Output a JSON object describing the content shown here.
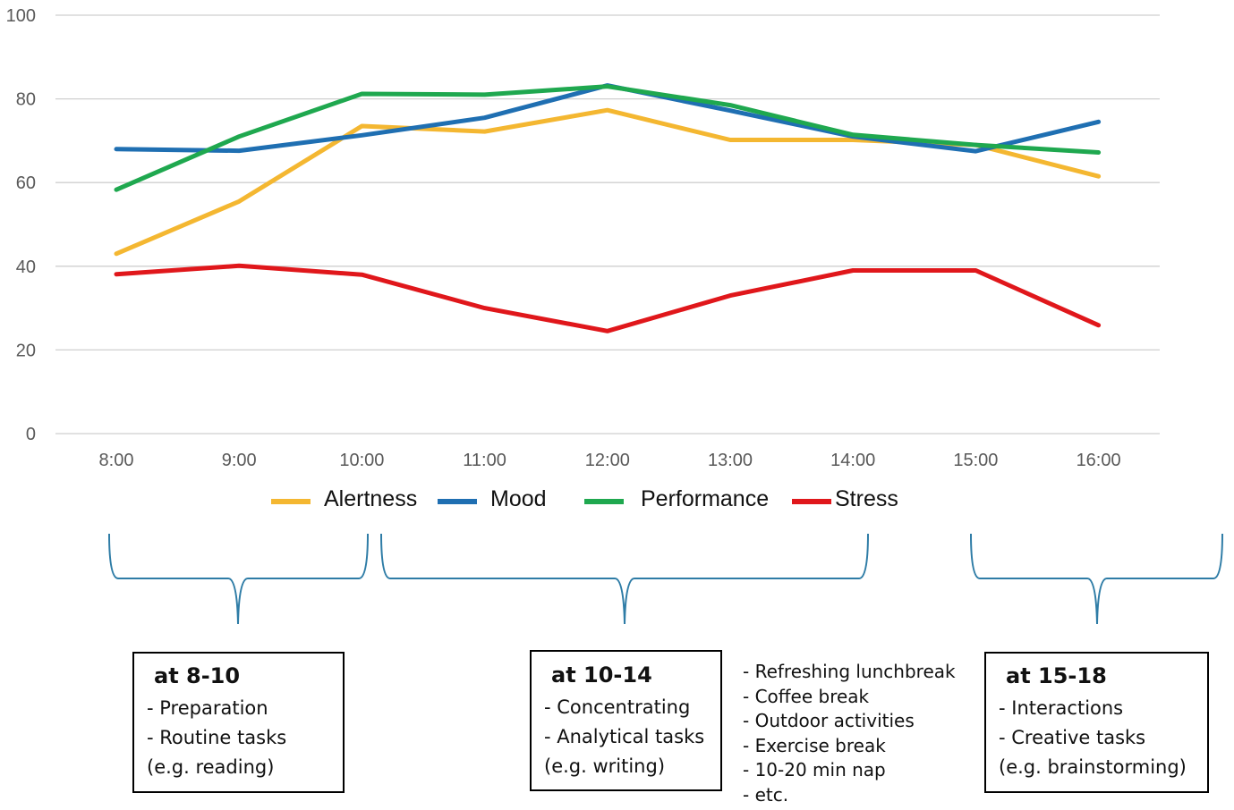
{
  "chart_data": {
    "type": "line",
    "title": "",
    "xlabel": "",
    "ylabel": "",
    "x": [
      "8:00",
      "9:00",
      "10:00",
      "11:00",
      "12:00",
      "13:00",
      "14:00",
      "15:00",
      "16:00"
    ],
    "ylim": [
      0,
      100
    ],
    "yticks": [
      "0",
      "20",
      "40",
      "60",
      "80",
      "100"
    ],
    "grid": true,
    "legend_position": "bottom",
    "series": [
      {
        "name": "Alertness",
        "color": "#F4B731",
        "values": [
          43,
          55.5,
          73.5,
          72.2,
          77.3,
          70.2,
          70.2,
          69,
          61.5
        ]
      },
      {
        "name": "Mood",
        "color": "#1F6FB2",
        "values": [
          68,
          67.6,
          71.3,
          75.5,
          83.2,
          77.2,
          71,
          67.5,
          74.5
        ]
      },
      {
        "name": "Performance",
        "color": "#1FA84F",
        "values": [
          58.3,
          71,
          81.2,
          81,
          83,
          78.5,
          71.4,
          69,
          67.2
        ]
      },
      {
        "name": "Stress",
        "color": "#E0171B",
        "values": [
          38.1,
          40.1,
          38,
          30,
          24.5,
          33,
          39,
          39,
          25.9
        ]
      }
    ]
  },
  "brace_color": "#2E7CA6",
  "boxes": [
    {
      "title": "at 8-10",
      "lines": [
        "- Preparation",
        "- Routine tasks",
        "(e.g. reading)"
      ]
    },
    {
      "title": "at 10-14",
      "lines": [
        "- Concentrating",
        "- Analytical tasks",
        "(e.g. writing)"
      ]
    },
    {
      "title": "at 15-18",
      "lines": [
        "- Interactions",
        "- Creative tasks",
        "(e.g. brainstorming)"
      ]
    }
  ],
  "break_tips": [
    "- Refreshing lunchbreak",
    "- Coffee break",
    "- Outdoor activities",
    "- Exercise break",
    "- 10-20 min nap",
    "- etc."
  ]
}
